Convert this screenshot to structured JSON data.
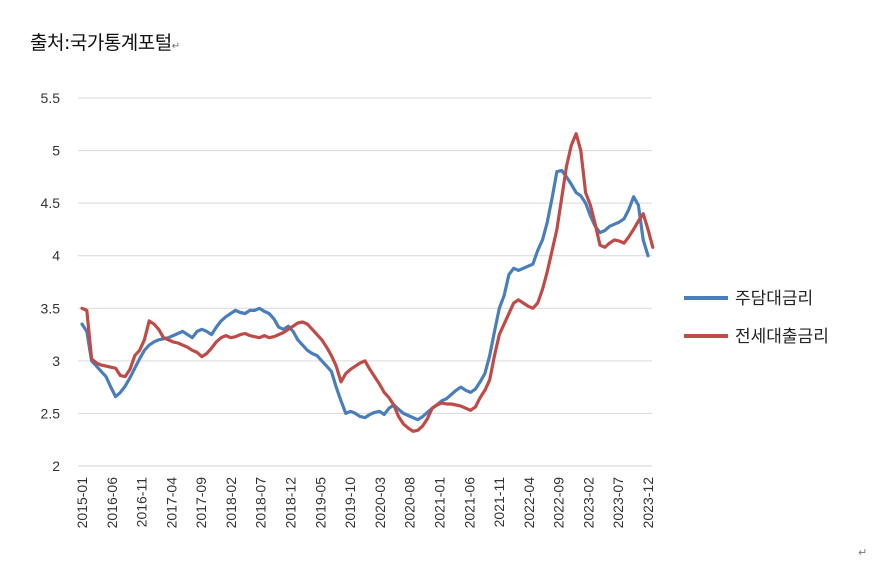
{
  "source_text": "출처:국가통계포털",
  "paragraph_mark": "↵",
  "chart_data": {
    "type": "line",
    "grid": true,
    "legend_placement": "right",
    "ylim": [
      2,
      5.5
    ],
    "yticks": [
      "2",
      "2.5",
      "3",
      "3.5",
      "4",
      "4.5",
      "5",
      "5.5"
    ],
    "xtick_labels": [
      "2015-01",
      "2016-06",
      "2016-11",
      "2017-04",
      "2017-09",
      "2018-02",
      "2018-07",
      "2018-12",
      "2019-05",
      "2019-10",
      "2020-03",
      "2020-08",
      "2021-01",
      "2021-06",
      "2021-11",
      "2022-04",
      "2022-09",
      "2023-02",
      "2023-07",
      "2023-12"
    ],
    "series": [
      {
        "name": "주담대금리",
        "color": "#4a7ebb",
        "values": [
          3.35,
          3.28,
          3.0,
          2.95,
          2.9,
          2.85,
          2.75,
          2.66,
          2.7,
          2.76,
          2.84,
          2.93,
          3.02,
          3.1,
          3.15,
          3.18,
          3.2,
          3.21,
          3.22,
          3.24,
          3.26,
          3.28,
          3.25,
          3.22,
          3.28,
          3.3,
          3.28,
          3.25,
          3.32,
          3.38,
          3.42,
          3.45,
          3.48,
          3.46,
          3.45,
          3.48,
          3.48,
          3.5,
          3.47,
          3.45,
          3.4,
          3.32,
          3.3,
          3.33,
          3.28,
          3.2,
          3.15,
          3.1,
          3.07,
          3.05,
          3.0,
          2.95,
          2.9,
          2.75,
          2.62,
          2.5,
          2.52,
          2.5,
          2.47,
          2.46,
          2.49,
          2.51,
          2.52,
          2.49,
          2.55,
          2.58,
          2.54,
          2.5,
          2.48,
          2.46,
          2.44,
          2.47,
          2.51,
          2.55,
          2.58,
          2.62,
          2.64,
          2.68,
          2.72,
          2.75,
          2.72,
          2.7,
          2.73,
          2.8,
          2.88,
          3.05,
          3.28,
          3.5,
          3.62,
          3.82,
          3.88,
          3.86,
          3.88,
          3.9,
          3.92,
          4.05,
          4.15,
          4.32,
          4.55,
          4.8,
          4.81,
          4.75,
          4.68,
          4.6,
          4.57,
          4.5,
          4.38,
          4.28,
          4.22,
          4.24,
          4.28,
          4.3,
          4.32,
          4.35,
          4.44,
          4.56,
          4.48,
          4.15,
          4.0
        ]
      },
      {
        "name": "전세대출금리",
        "color": "#be4b48",
        "values": [
          3.5,
          3.48,
          3.02,
          2.98,
          2.96,
          2.95,
          2.94,
          2.93,
          2.86,
          2.85,
          2.92,
          3.05,
          3.1,
          3.2,
          3.38,
          3.35,
          3.3,
          3.22,
          3.2,
          3.18,
          3.17,
          3.15,
          3.13,
          3.1,
          3.08,
          3.04,
          3.07,
          3.12,
          3.18,
          3.22,
          3.24,
          3.22,
          3.23,
          3.25,
          3.26,
          3.24,
          3.23,
          3.22,
          3.24,
          3.22,
          3.23,
          3.25,
          3.27,
          3.3,
          3.33,
          3.36,
          3.37,
          3.35,
          3.3,
          3.25,
          3.2,
          3.13,
          3.05,
          2.95,
          2.8,
          2.88,
          2.92,
          2.95,
          2.98,
          3.0,
          2.92,
          2.85,
          2.78,
          2.7,
          2.65,
          2.58,
          2.47,
          2.4,
          2.36,
          2.33,
          2.34,
          2.38,
          2.45,
          2.55,
          2.58,
          2.6,
          2.59,
          2.59,
          2.58,
          2.57,
          2.55,
          2.53,
          2.56,
          2.65,
          2.72,
          2.82,
          3.05,
          3.25,
          3.35,
          3.45,
          3.55,
          3.58,
          3.55,
          3.52,
          3.5,
          3.55,
          3.68,
          3.85,
          4.05,
          4.25,
          4.55,
          4.85,
          5.05,
          5.16,
          5.0,
          4.6,
          4.48,
          4.3,
          4.1,
          4.08,
          4.12,
          4.15,
          4.14,
          4.12,
          4.18,
          4.25,
          4.33,
          4.4,
          4.25,
          4.08
        ]
      }
    ]
  }
}
